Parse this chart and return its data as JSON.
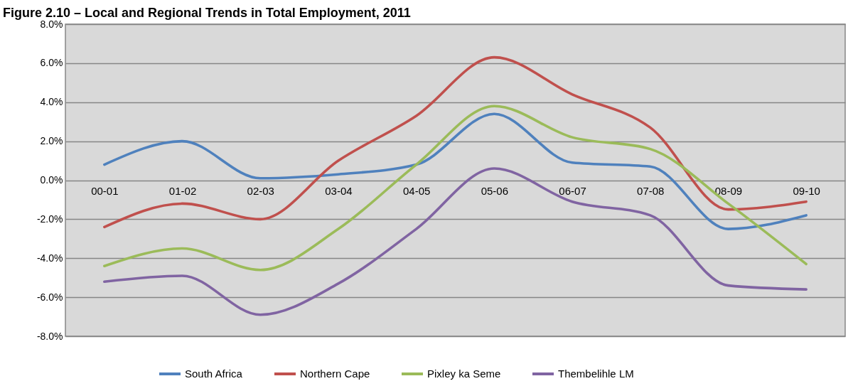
{
  "chart_data": {
    "type": "line",
    "title": "Figure 2.10 – Local and Regional Trends in Total Employment, 2011",
    "categories": [
      "00-01",
      "01-02",
      "02-03",
      "03-04",
      "04-05",
      "05-06",
      "06-07",
      "07-08",
      "08-09",
      "09-10"
    ],
    "series": [
      {
        "name": "South Africa",
        "color": "#4f81bd",
        "values": [
          0.8,
          2.0,
          0.1,
          0.3,
          0.8,
          3.4,
          0.9,
          0.7,
          -2.5,
          -1.8
        ]
      },
      {
        "name": "Northern Cape",
        "color": "#c0504d",
        "values": [
          -2.4,
          -1.2,
          -2.0,
          1.0,
          3.3,
          6.3,
          4.4,
          2.7,
          -1.5,
          -1.1
        ]
      },
      {
        "name": "Pixley ka Seme",
        "color": "#9bbb59",
        "values": [
          -4.4,
          -3.5,
          -4.6,
          -2.5,
          0.8,
          3.8,
          2.2,
          1.6,
          -1.2,
          -4.3
        ]
      },
      {
        "name": "Thembelihle LM",
        "color": "#8064a2",
        "values": [
          -5.2,
          -4.9,
          -6.9,
          -5.3,
          -2.5,
          0.6,
          -1.1,
          -1.8,
          -5.4,
          -5.6
        ]
      }
    ],
    "ylim": [
      -8,
      8
    ],
    "yticks": [
      {
        "value": 8,
        "label": "8.0%"
      },
      {
        "value": 6,
        "label": "6.0%"
      },
      {
        "value": 4,
        "label": "4.0%"
      },
      {
        "value": 2,
        "label": "2.0%"
      },
      {
        "value": 0,
        "label": "0.0%"
      },
      {
        "value": -2,
        "label": "-2.0%"
      },
      {
        "value": -4,
        "label": "-4.0%"
      },
      {
        "value": -6,
        "label": "-6.0%"
      },
      {
        "value": -8,
        "label": "-8.0%"
      }
    ],
    "grid": "y",
    "legend": "bottom"
  }
}
